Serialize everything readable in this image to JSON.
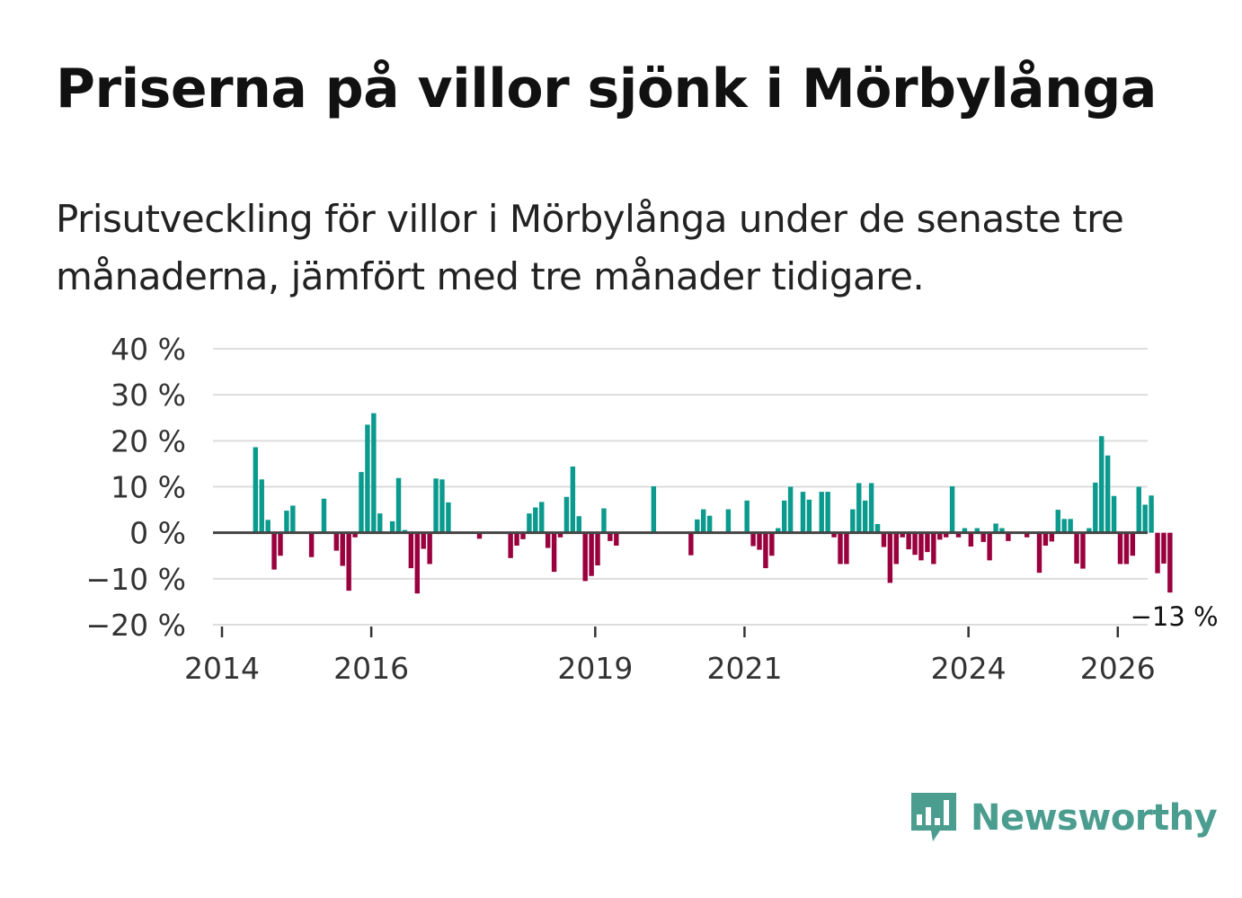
{
  "header": {
    "title": "Priserna på villor sjönk i Mörbylånga",
    "subtitle": "Prisutveckling för villor i Mörbylånga under de senaste tre månaderna, jämfört med tre månader tidigare."
  },
  "brand": {
    "name": "Newsworthy",
    "color": "#4a9d8f"
  },
  "chart_data": {
    "type": "bar",
    "title": "Priserna på villor sjönk i Mörbylånga",
    "ylabel": "",
    "xlabel": "",
    "ylim": [
      -20,
      40
    ],
    "y_ticks": [
      40,
      30,
      20,
      10,
      0,
      -10,
      -20
    ],
    "y_tick_labels": [
      "40 %",
      "30 %",
      "20 %",
      "10 %",
      "0 %",
      "−10 %",
      "−20 %"
    ],
    "x_ticks": [
      2014,
      2016,
      2019,
      2021,
      2024,
      2026
    ],
    "x_tick_labels": [
      "2014",
      "2016",
      "2019",
      "2021",
      "2024",
      "2026"
    ],
    "start": {
      "year": 2014,
      "month": 1
    },
    "positive_color": "#0b9a8e",
    "negative_color": "#99003d",
    "end_label": "−13 %",
    "values": [
      0,
      0,
      0,
      0,
      0,
      18.6,
      11.6,
      2.8,
      -8,
      -5,
      4.8,
      5.9,
      0,
      0,
      -5.3,
      0,
      7.4,
      0,
      -3.9,
      -7.2,
      -12.6,
      -1,
      13.2,
      23.5,
      26,
      4.2,
      0,
      2.5,
      11.9,
      0.6,
      -7.7,
      -13.2,
      -3.5,
      -6.8,
      11.8,
      11.6,
      6.6,
      0,
      0,
      0,
      0,
      -1.3,
      0,
      0,
      0,
      0,
      -5.5,
      -2.8,
      -1.4,
      4.2,
      5.5,
      6.7,
      -3.3,
      -8.5,
      -1,
      7.8,
      14.4,
      3.6,
      -10.5,
      -9.4,
      -7.1,
      5.3,
      -1.8,
      -2.8,
      0,
      0,
      0,
      0,
      0,
      10.1,
      0,
      0,
      0,
      0,
      0,
      -4.9,
      2.9,
      5.1,
      3.7,
      0,
      0,
      5.1,
      0,
      0,
      7,
      -2.9,
      -3.7,
      -7.7,
      -5,
      1,
      7,
      10,
      0,
      8.9,
      7.2,
      0,
      8.9,
      8.9,
      -1,
      -6.8,
      -6.8,
      5.1,
      10.8,
      7,
      10.8,
      1.9,
      -3.1,
      -10.9,
      -6.8,
      -1,
      -3.6,
      -4.8,
      -6,
      -4.2,
      -6.8,
      -1.5,
      -1,
      10.1,
      -1,
      1,
      -3,
      1,
      -2,
      -6,
      2,
      1,
      -1.8,
      0,
      0,
      -1,
      0,
      -8.7,
      -2.8,
      -1.9,
      5,
      3,
      3,
      -6.7,
      -7.8,
      1,
      10.9,
      21,
      16.8,
      8,
      -6.8,
      -6.8,
      -5,
      10,
      6.1,
      8.1,
      -8.8,
      -6.7,
      -13
    ]
  }
}
